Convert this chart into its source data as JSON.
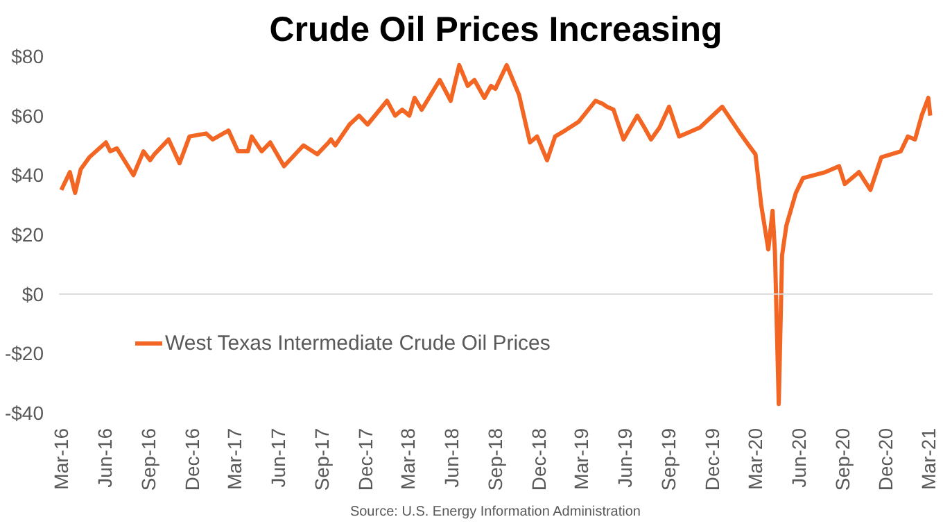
{
  "chart_data": {
    "type": "line",
    "title": "Crude Oil Prices Increasing",
    "x": [
      "2016-03-01",
      "2016-03-19",
      "2016-03-30",
      "2016-04-11",
      "2016-04-29",
      "2016-06-03",
      "2016-06-12",
      "2016-06-26",
      "2016-07-31",
      "2016-08-21",
      "2016-09-04",
      "2016-09-13",
      "2016-10-13",
      "2016-11-05",
      "2016-11-26",
      "2016-12-31",
      "2017-01-14",
      "2017-02-16",
      "2017-03-08",
      "2017-03-29",
      "2017-04-06",
      "2017-04-27",
      "2017-05-15",
      "2017-06-13",
      "2017-07-24",
      "2017-08-22",
      "2017-09-15",
      "2017-09-20",
      "2017-09-29",
      "2017-10-29",
      "2017-11-18",
      "2017-12-06",
      "2018-01-16",
      "2018-02-02",
      "2018-02-17",
      "2018-03-04",
      "2018-03-15",
      "2018-03-30",
      "2018-05-07",
      "2018-05-30",
      "2018-06-17",
      "2018-07-05",
      "2018-07-19",
      "2018-08-09",
      "2018-08-23",
      "2018-09-01",
      "2018-09-25",
      "2018-10-21",
      "2018-11-13",
      "2018-11-28",
      "2018-12-19",
      "2019-01-05",
      "2019-01-26",
      "2019-02-24",
      "2019-03-31",
      "2019-04-15",
      "2019-04-24",
      "2019-05-08",
      "2019-05-29",
      "2019-06-27",
      "2019-07-12",
      "2019-07-26",
      "2019-08-13",
      "2019-09-02",
      "2019-09-23",
      "2019-11-06",
      "2019-12-23",
      "2020-01-30",
      "2020-02-17",
      "2020-03-02",
      "2020-03-14",
      "2020-03-29",
      "2020-04-07",
      "2020-04-12",
      "2020-04-20",
      "2020-04-27",
      "2020-05-06",
      "2020-05-26",
      "2020-06-10",
      "2020-07-27",
      "2020-08-25",
      "2020-09-06",
      "2020-10-06",
      "2020-10-30",
      "2020-11-22",
      "2021-01-02",
      "2021-01-17",
      "2021-02-01",
      "2021-02-15",
      "2021-03-01",
      "2021-03-05"
    ],
    "series": [
      {
        "name": "West Texas Intermediate Crude Oil Prices",
        "color": "#f26522",
        "values": [
          35,
          41,
          34,
          42,
          46,
          51,
          48,
          49,
          40,
          48,
          45,
          47,
          52,
          44,
          53,
          54,
          52,
          55,
          48,
          48,
          53,
          48,
          51,
          43,
          50,
          47,
          51,
          52,
          50,
          57,
          60,
          57,
          65,
          60,
          62,
          60,
          66,
          62,
          72,
          65,
          77,
          70,
          72,
          66,
          70,
          69,
          77,
          67,
          51,
          53,
          45,
          53,
          55,
          58,
          65,
          64,
          63,
          62,
          52,
          60,
          56,
          52,
          56,
          63,
          53,
          56,
          63,
          54,
          50,
          47,
          30,
          15,
          28,
          14,
          -37,
          13,
          23,
          34,
          39,
          41,
          43,
          37,
          41,
          35,
          46,
          48,
          53,
          52,
          60,
          66,
          60
        ]
      }
    ],
    "xlim": [
      "2016-02-25",
      "2021-03-10"
    ],
    "xticks": [
      {
        "value": "2016-03-01",
        "label": "Mar-16"
      },
      {
        "value": "2016-06-01",
        "label": "Jun-16"
      },
      {
        "value": "2016-09-01",
        "label": "Sep-16"
      },
      {
        "value": "2016-12-01",
        "label": "Dec-16"
      },
      {
        "value": "2017-03-01",
        "label": "Mar-17"
      },
      {
        "value": "2017-06-01",
        "label": "Jun-17"
      },
      {
        "value": "2017-09-01",
        "label": "Sep-17"
      },
      {
        "value": "2017-12-01",
        "label": "Dec-17"
      },
      {
        "value": "2018-03-01",
        "label": "Mar-18"
      },
      {
        "value": "2018-06-01",
        "label": "Jun-18"
      },
      {
        "value": "2018-09-01",
        "label": "Sep-18"
      },
      {
        "value": "2018-12-01",
        "label": "Dec-18"
      },
      {
        "value": "2019-03-01",
        "label": "Mar-19"
      },
      {
        "value": "2019-06-01",
        "label": "Jun-19"
      },
      {
        "value": "2019-09-01",
        "label": "Sep-19"
      },
      {
        "value": "2019-12-01",
        "label": "Dec-19"
      },
      {
        "value": "2020-03-01",
        "label": "Mar-20"
      },
      {
        "value": "2020-06-01",
        "label": "Jun-20"
      },
      {
        "value": "2020-09-01",
        "label": "Sep-20"
      },
      {
        "value": "2020-12-01",
        "label": "Dec-20"
      },
      {
        "value": "2021-03-01",
        "label": "Mar-21"
      }
    ],
    "ylim": [
      -40,
      80
    ],
    "yticks": [
      {
        "value": -40,
        "label": "-$40"
      },
      {
        "value": -20,
        "label": "-$20"
      },
      {
        "value": 0,
        "label": "$0"
      },
      {
        "value": 20,
        "label": "$20"
      },
      {
        "value": 40,
        "label": "$40"
      },
      {
        "value": 60,
        "label": "$60"
      },
      {
        "value": 80,
        "label": "$80"
      }
    ],
    "ref_lines": [
      {
        "axis": "y",
        "value": 0,
        "color": "#d9d9d9"
      }
    ],
    "legend": "bottom left",
    "annotations": [
      "Source: U.S. Energy Information Administration"
    ]
  }
}
